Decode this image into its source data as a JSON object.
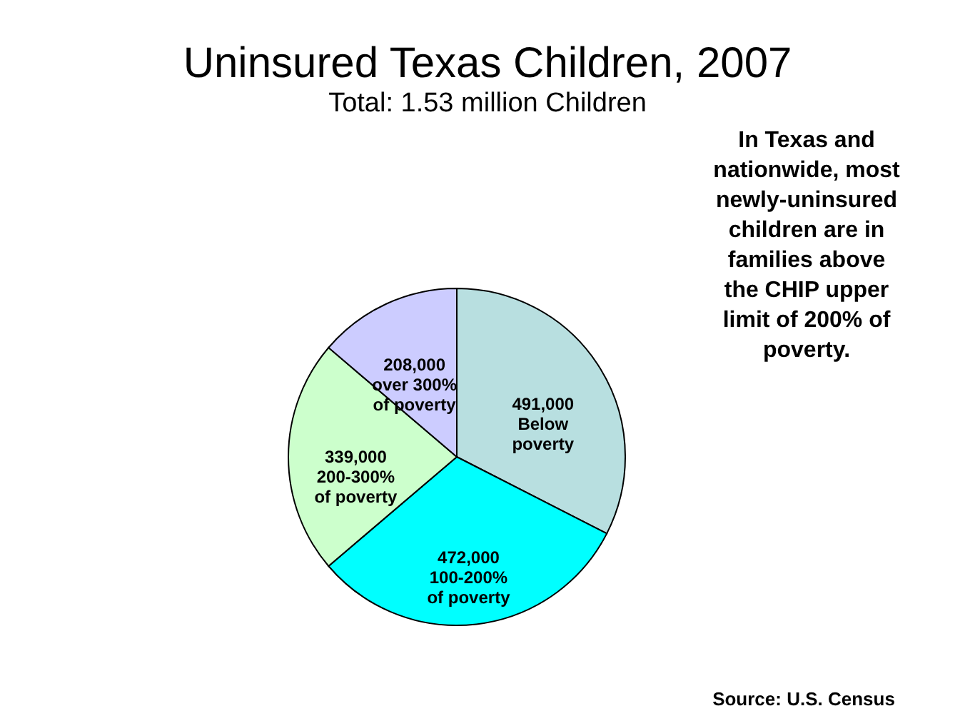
{
  "chart_data": {
    "type": "pie",
    "title": "Uninsured Texas Children, 2007",
    "subtitle": "Total: 1.53 million Children",
    "categories": [
      "Below poverty",
      "100-200% of poverty",
      "200-300% of poverty",
      "over 300% of poverty"
    ],
    "values": [
      491000,
      472000,
      339000,
      208000
    ],
    "value_labels": [
      "491,000",
      "472,000",
      "339,000",
      "208,000"
    ],
    "colors": [
      "#b8dfe0",
      "#00ffff",
      "#ccffcc",
      "#ccccff"
    ],
    "legend": false,
    "annotations": [
      "In Texas and nationwide, most newly-uninsured children are in families above the CHIP upper limit of 200% of poverty.",
      "Source: U.S. Census"
    ]
  }
}
